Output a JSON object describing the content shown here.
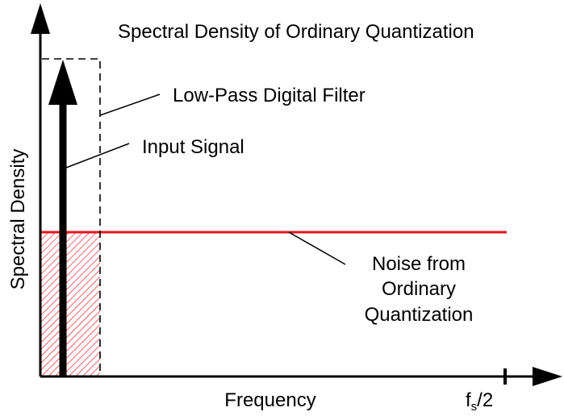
{
  "title": "Spectral Density of Ordinary Quantization",
  "labels": {
    "filter": "Low-Pass Digital Filter",
    "signal": "Input Signal",
    "noise_line1": "Noise from",
    "noise_line2": "Ordinary",
    "noise_line3": "Quantization"
  },
  "axes": {
    "x_label": "Frequency",
    "y_label": "Spectral Density",
    "x_end_tick": {
      "base": "f",
      "subscript": "s",
      "suffix": "/2"
    }
  },
  "colors": {
    "noise": "#e8141e",
    "axes": "#000000"
  }
}
